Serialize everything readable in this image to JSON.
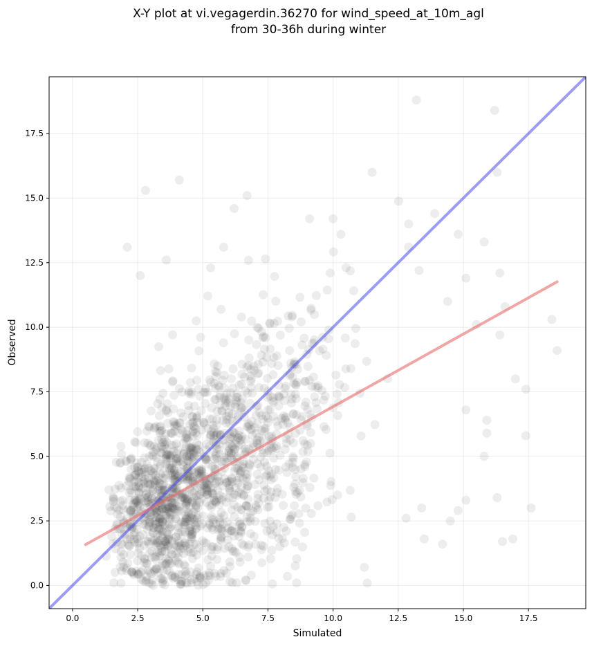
{
  "chart_data": {
    "type": "scatter",
    "title_lines": [
      "X-Y plot at vi.vegagerdin.36270 for wind_speed_at_10m_agl",
      "from 30-36h during winter"
    ],
    "xlabel": "Simulated",
    "ylabel": "Observed",
    "xlim": [
      -0.9,
      19.7
    ],
    "ylim": [
      -0.9,
      19.7
    ],
    "xticks": [
      0.0,
      2.5,
      5.0,
      7.5,
      10.0,
      12.5,
      15.0,
      17.5
    ],
    "yticks": [
      0.0,
      2.5,
      5.0,
      7.5,
      10.0,
      12.5,
      15.0,
      17.5
    ],
    "xtick_labels": [
      "0.0",
      "2.5",
      "5.0",
      "7.5",
      "10.0",
      "12.5",
      "15.0",
      "17.5"
    ],
    "ytick_labels": [
      "0.0",
      "2.5",
      "5.0",
      "7.5",
      "10.0",
      "12.5",
      "15.0",
      "17.5"
    ],
    "grid": true,
    "point_color": "#333333",
    "identity_line": {
      "color": "#4a4ae8",
      "x": [
        -0.9,
        19.7
      ],
      "y": [
        -0.9,
        19.7
      ]
    },
    "fit_line": {
      "color": "#e86a6a",
      "x": [
        0.5,
        18.6
      ],
      "y": [
        1.58,
        11.76
      ]
    },
    "outlier_points": [
      {
        "x": 13.2,
        "y": 18.8
      },
      {
        "x": 16.2,
        "y": 18.4
      },
      {
        "x": 16.3,
        "y": 16.0
      },
      {
        "x": 11.5,
        "y": 16.0
      },
      {
        "x": 4.1,
        "y": 15.7
      },
      {
        "x": 2.8,
        "y": 15.3
      },
      {
        "x": 6.7,
        "y": 15.1
      },
      {
        "x": 6.2,
        "y": 14.6
      },
      {
        "x": 13.9,
        "y": 14.4
      },
      {
        "x": 9.1,
        "y": 14.2
      },
      {
        "x": 10.0,
        "y": 14.2
      },
      {
        "x": 12.9,
        "y": 14.0
      },
      {
        "x": 10.3,
        "y": 13.6
      },
      {
        "x": 14.8,
        "y": 13.6
      },
      {
        "x": 15.8,
        "y": 13.3
      },
      {
        "x": 2.1,
        "y": 13.1
      },
      {
        "x": 5.8,
        "y": 13.1
      },
      {
        "x": 12.9,
        "y": 13.1
      },
      {
        "x": 16.4,
        "y": 12.1
      },
      {
        "x": 15.1,
        "y": 11.9
      },
      {
        "x": 3.6,
        "y": 12.6
      },
      {
        "x": 5.3,
        "y": 12.3
      },
      {
        "x": 2.6,
        "y": 12.0
      },
      {
        "x": 13.3,
        "y": 12.2
      },
      {
        "x": 14.4,
        "y": 11.0
      },
      {
        "x": 16.6,
        "y": 10.8
      },
      {
        "x": 18.4,
        "y": 10.3
      },
      {
        "x": 18.6,
        "y": 9.1
      },
      {
        "x": 15.5,
        "y": 10.1
      },
      {
        "x": 16.4,
        "y": 9.7
      },
      {
        "x": 17.0,
        "y": 8.0
      },
      {
        "x": 17.4,
        "y": 7.6
      },
      {
        "x": 15.1,
        "y": 6.8
      },
      {
        "x": 15.9,
        "y": 6.4
      },
      {
        "x": 15.9,
        "y": 5.9
      },
      {
        "x": 15.8,
        "y": 5.0
      },
      {
        "x": 17.4,
        "y": 5.8
      },
      {
        "x": 16.3,
        "y": 3.4
      },
      {
        "x": 15.1,
        "y": 3.3
      },
      {
        "x": 17.6,
        "y": 3.0
      },
      {
        "x": 14.8,
        "y": 2.9
      },
      {
        "x": 14.5,
        "y": 2.5
      },
      {
        "x": 16.5,
        "y": 1.7
      },
      {
        "x": 16.9,
        "y": 1.8
      },
      {
        "x": 14.2,
        "y": 1.6
      },
      {
        "x": 13.5,
        "y": 1.8
      },
      {
        "x": 8.6,
        "y": 0.1
      },
      {
        "x": 6.3,
        "y": 0.1
      },
      {
        "x": 3.1,
        "y": 0.0
      },
      {
        "x": 11.2,
        "y": 0.7
      },
      {
        "x": 12.8,
        "y": 2.6
      },
      {
        "x": 13.4,
        "y": 3.0
      }
    ],
    "scatter_summary": {
      "n_points": 1600,
      "note": "dense semi-transparent cloud of observed vs simulated wind speeds"
    }
  }
}
